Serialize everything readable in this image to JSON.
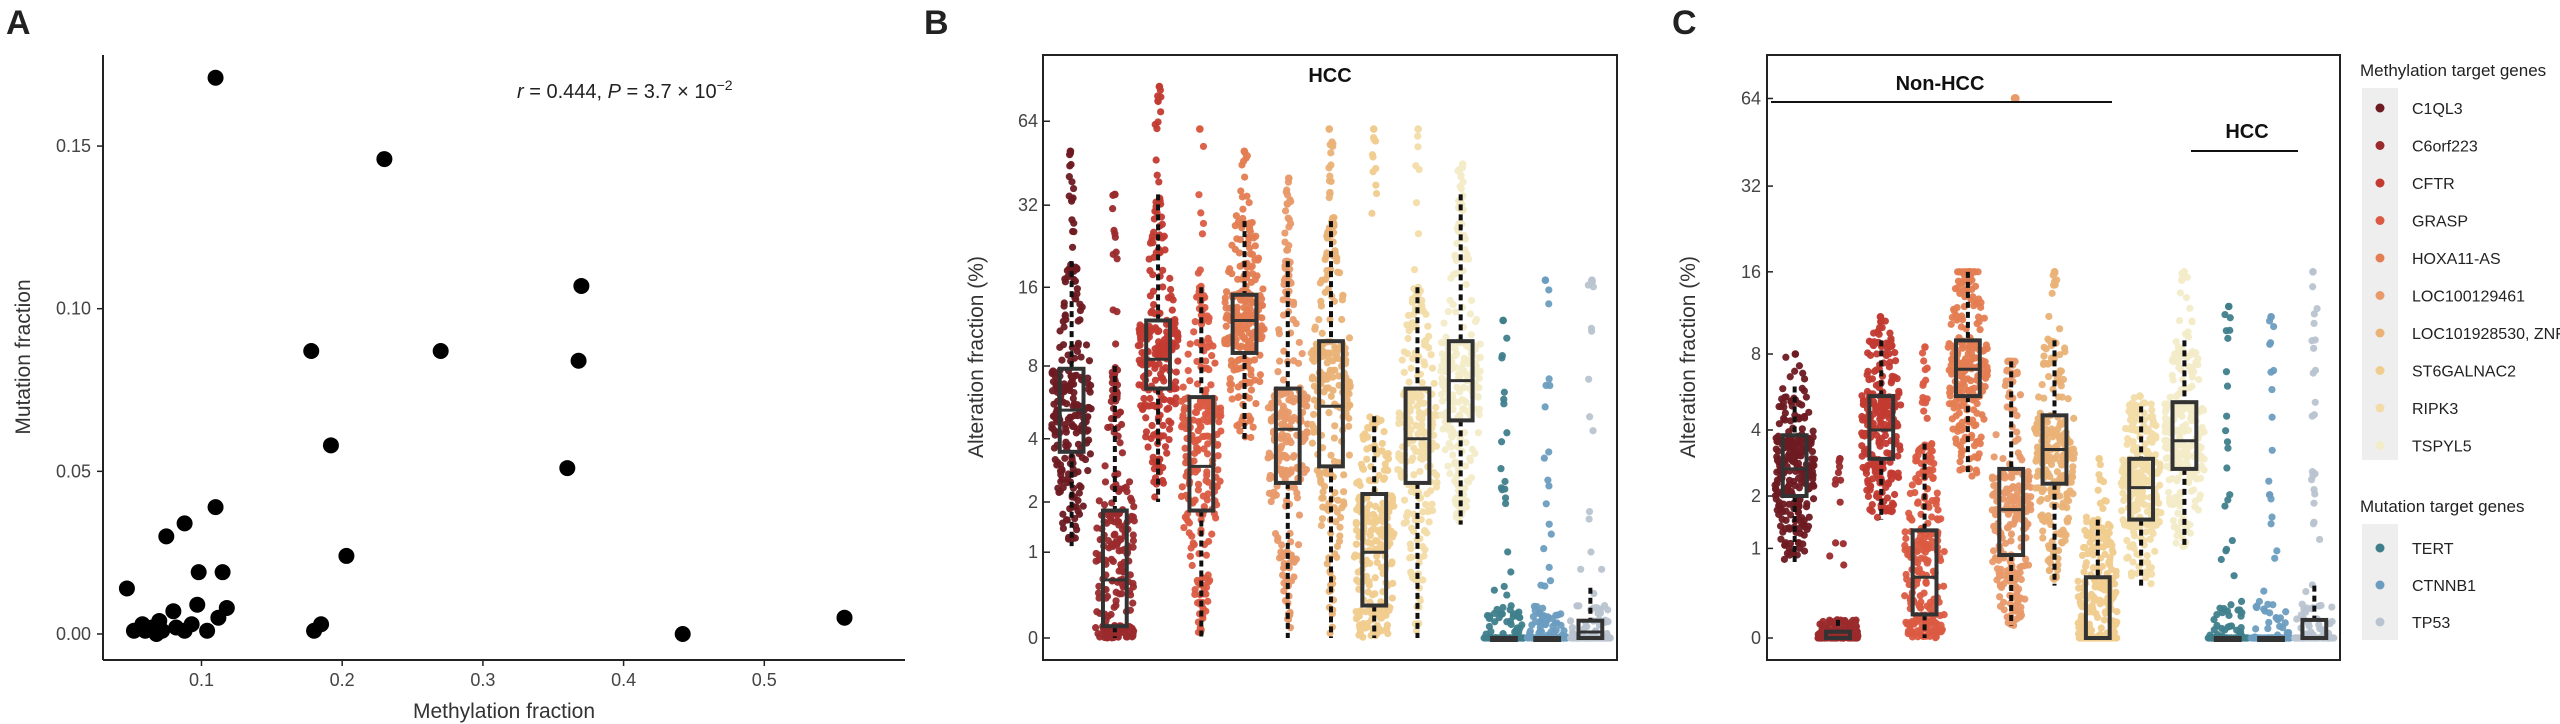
{
  "panels": {
    "A": {
      "letter": "A"
    },
    "B": {
      "letter": "B",
      "group_label": "HCC"
    },
    "C": {
      "letter": "C",
      "group_labels": [
        "Non-HCC",
        "HCC"
      ]
    }
  },
  "legend": {
    "methylation_title": "Methylation target genes",
    "methylation_genes": [
      {
        "name": "C1QL3",
        "color": "#6e1a22"
      },
      {
        "name": "C6orf223",
        "color": "#9a2a2c"
      },
      {
        "name": "CFTR",
        "color": "#c23a30"
      },
      {
        "name": "GRASP",
        "color": "#db5b42"
      },
      {
        "name": "HOXA11-AS",
        "color": "#e47d52"
      },
      {
        "name": "LOC100129461",
        "color": "#e89a6a"
      },
      {
        "name": "LOC101928530, ZNF605",
        "color": "#eab276"
      },
      {
        "name": "ST6GALNAC2",
        "color": "#f0cc8e"
      },
      {
        "name": "RIPK3",
        "color": "#f2dca8"
      },
      {
        "name": "TSPYL5",
        "color": "#f3ecc8"
      }
    ],
    "mutation_title": "Mutation target genes",
    "mutation_genes": [
      {
        "name": "TERT",
        "color": "#3f7f8c"
      },
      {
        "name": "CTNNB1",
        "color": "#6c9dc0"
      },
      {
        "name": "TP53",
        "color": "#b9c4d0"
      }
    ]
  },
  "chart_data": [
    {
      "type": "scatter",
      "panel": "A",
      "xlabel": "Methylation fraction",
      "ylabel": "Mutation fraction",
      "annotation": {
        "r_label": "r",
        "r_value": " = 0.444,  ",
        "p_label": "P",
        "p_value": " = 3.7 × 10",
        "p_exp": "−2"
      },
      "xlim": [
        0.03,
        0.6
      ],
      "ylim": [
        -0.008,
        0.178
      ],
      "x_ticks": [
        0.1,
        0.2,
        0.3,
        0.4,
        0.5
      ],
      "x_tick_labels": [
        "0.1",
        "0.2",
        "0.3",
        "0.4",
        "0.5"
      ],
      "y_ticks": [
        0.0,
        0.05,
        0.1,
        0.15
      ],
      "y_tick_labels": [
        "0.00",
        "0.05",
        "0.10",
        "0.15"
      ],
      "points": [
        [
          0.11,
          0.171
        ],
        [
          0.23,
          0.146
        ],
        [
          0.37,
          0.107
        ],
        [
          0.178,
          0.087
        ],
        [
          0.27,
          0.087
        ],
        [
          0.368,
          0.084
        ],
        [
          0.192,
          0.058
        ],
        [
          0.36,
          0.051
        ],
        [
          0.11,
          0.039
        ],
        [
          0.088,
          0.034
        ],
        [
          0.075,
          0.03
        ],
        [
          0.203,
          0.024
        ],
        [
          0.115,
          0.019
        ],
        [
          0.098,
          0.019
        ],
        [
          0.047,
          0.014
        ],
        [
          0.118,
          0.008
        ],
        [
          0.112,
          0.005
        ],
        [
          0.097,
          0.009
        ],
        [
          0.08,
          0.007
        ],
        [
          0.07,
          0.004
        ],
        [
          0.065,
          0.002
        ],
        [
          0.06,
          0.001
        ],
        [
          0.052,
          0.001
        ],
        [
          0.058,
          0.003
        ],
        [
          0.072,
          0.001
        ],
        [
          0.082,
          0.002
        ],
        [
          0.088,
          0.001
        ],
        [
          0.093,
          0.003
        ],
        [
          0.104,
          0.001
        ],
        [
          0.068,
          0.0
        ],
        [
          0.185,
          0.003
        ],
        [
          0.18,
          0.001
        ],
        [
          0.442,
          0.0
        ],
        [
          0.557,
          0.005
        ]
      ]
    },
    {
      "type": "box-beeswarm",
      "panel": "B",
      "ylabel": "Alteration fraction (%)",
      "y_scale": "pseudo-log2",
      "y_ticks": [
        0,
        1,
        2,
        4,
        8,
        16,
        32,
        64
      ],
      "y_tick_labels": [
        "0",
        "1",
        "2",
        "4",
        "8",
        "16",
        "32",
        "64"
      ],
      "ylim": [
        0,
        110
      ],
      "series": [
        {
          "gene": "C1QL3",
          "q1": 3.5,
          "median": 5.3,
          "q3": 7.8,
          "wlo": 1.1,
          "whi": 20,
          "max": 50,
          "min": 0
        },
        {
          "gene": "C6orf223",
          "q1": 0.1,
          "median": 0.6,
          "q3": 1.8,
          "wlo": 0,
          "whi": 8,
          "max": 35,
          "min": 0
        },
        {
          "gene": "CFTR",
          "q1": 6.5,
          "median": 8.5,
          "q3": 12,
          "wlo": 2,
          "whi": 35,
          "max": 85,
          "min": 0.8
        },
        {
          "gene": "GRASP",
          "q1": 1.8,
          "median": 3,
          "q3": 6,
          "wlo": 0,
          "whi": 16,
          "max": 60,
          "min": 0
        },
        {
          "gene": "HOXA11-AS",
          "q1": 9,
          "median": 12,
          "q3": 15,
          "wlo": 4,
          "whi": 28,
          "max": 50,
          "min": 1.3
        },
        {
          "gene": "LOC100129461",
          "q1": 2.5,
          "median": 4.4,
          "q3": 6.5,
          "wlo": 0,
          "whi": 20,
          "max": 40,
          "min": 0
        },
        {
          "gene": "LOC101928530, ZNF605",
          "q1": 3,
          "median": 5.5,
          "q3": 10,
          "wlo": 0,
          "whi": 28,
          "max": 60,
          "min": 0
        },
        {
          "gene": "ST6GALNAC2",
          "q1": 0.3,
          "median": 1,
          "q3": 2.2,
          "wlo": 0,
          "whi": 5,
          "max": 60,
          "min": 0
        },
        {
          "gene": "RIPK3",
          "q1": 2.5,
          "median": 4,
          "q3": 6.5,
          "wlo": 0,
          "whi": 16,
          "max": 60,
          "min": 0.1
        },
        {
          "gene": "TSPYL5",
          "q1": 4.8,
          "median": 7,
          "q3": 10,
          "wlo": 1.5,
          "whi": 35,
          "max": 45,
          "min": 0.2
        },
        {
          "gene": "TERT",
          "q1": 0,
          "median": 0,
          "q3": 0,
          "wlo": 0,
          "whi": 0,
          "max": 12,
          "min": 0
        },
        {
          "gene": "CTNNB1",
          "q1": 0,
          "median": 0,
          "q3": 0,
          "wlo": 0,
          "whi": 0,
          "max": 17,
          "min": 0
        },
        {
          "gene": "TP53",
          "q1": 0,
          "median": 0.05,
          "q3": 0.15,
          "wlo": 0,
          "whi": 0.5,
          "max": 17,
          "min": 0
        }
      ]
    },
    {
      "type": "box-beeswarm",
      "panel": "C",
      "ylabel": "Alteration fraction (%)",
      "y_scale": "pseudo-log2",
      "y_ticks": [
        0,
        1,
        2,
        4,
        8,
        16,
        32,
        64
      ],
      "y_tick_labels": [
        "0",
        "1",
        "2",
        "4",
        "8",
        "16",
        "32",
        "64"
      ],
      "ylim": [
        0,
        90
      ],
      "series": [
        {
          "gene": "C1QL3",
          "q1": 2,
          "median": 2.7,
          "q3": 3.8,
          "wlo": 0.8,
          "whi": 6,
          "max": 8,
          "min": 0.4
        },
        {
          "gene": "C6orf223",
          "q1": 0,
          "median": 0,
          "q3": 0.05,
          "wlo": 0,
          "whi": 0.15,
          "max": 3,
          "min": 0
        },
        {
          "gene": "CFTR",
          "q1": 3,
          "median": 4,
          "q3": 5.5,
          "wlo": 1.5,
          "whi": 9,
          "max": 11,
          "min": 1.2
        },
        {
          "gene": "GRASP",
          "q1": 0.2,
          "median": 0.6,
          "q3": 1.3,
          "wlo": 0,
          "whi": 3.5,
          "max": 8.5,
          "min": 0
        },
        {
          "gene": "HOXA11-AS",
          "q1": 5.5,
          "median": 7,
          "q3": 9,
          "wlo": 2.5,
          "whi": 16,
          "max": 16,
          "min": 1.3
        },
        {
          "gene": "LOC100129461",
          "q1": 0.9,
          "median": 1.7,
          "q3": 2.7,
          "wlo": 0.1,
          "whi": 7.5,
          "max": 7.5,
          "min": 0
        },
        {
          "gene": "LOC101928530, ZNF605",
          "q1": 2.3,
          "median": 3.3,
          "q3": 4.6,
          "wlo": 0.5,
          "whi": 9,
          "max": 16,
          "min": 0
        },
        {
          "gene": "ST6GALNAC2",
          "q1": 0,
          "median": 0,
          "q3": 0.6,
          "wlo": 0,
          "whi": 1.5,
          "max": 3,
          "min": 0
        },
        {
          "gene": "RIPK3",
          "q1": 1.5,
          "median": 2.2,
          "q3": 3,
          "wlo": 0.5,
          "whi": 5,
          "max": 5.5,
          "min": 0.1
        },
        {
          "gene": "TSPYL5",
          "q1": 2.7,
          "median": 3.6,
          "q3": 5.2,
          "wlo": 1,
          "whi": 9,
          "max": 16,
          "min": 0.8
        },
        {
          "gene": "TERT",
          "q1": 0,
          "median": 0,
          "q3": 0,
          "wlo": 0,
          "whi": 0,
          "max": 12,
          "min": 0
        },
        {
          "gene": "CTNNB1",
          "q1": 0,
          "median": 0,
          "q3": 0,
          "wlo": 0,
          "whi": 0,
          "max": 11,
          "min": 0
        },
        {
          "gene": "TP53",
          "q1": 0,
          "median": 0,
          "q3": 0.15,
          "wlo": 0,
          "whi": 0.5,
          "max": 16,
          "min": 0
        }
      ],
      "outliers": [
        {
          "gene": "LOC100129461",
          "value": 64
        }
      ]
    }
  ]
}
